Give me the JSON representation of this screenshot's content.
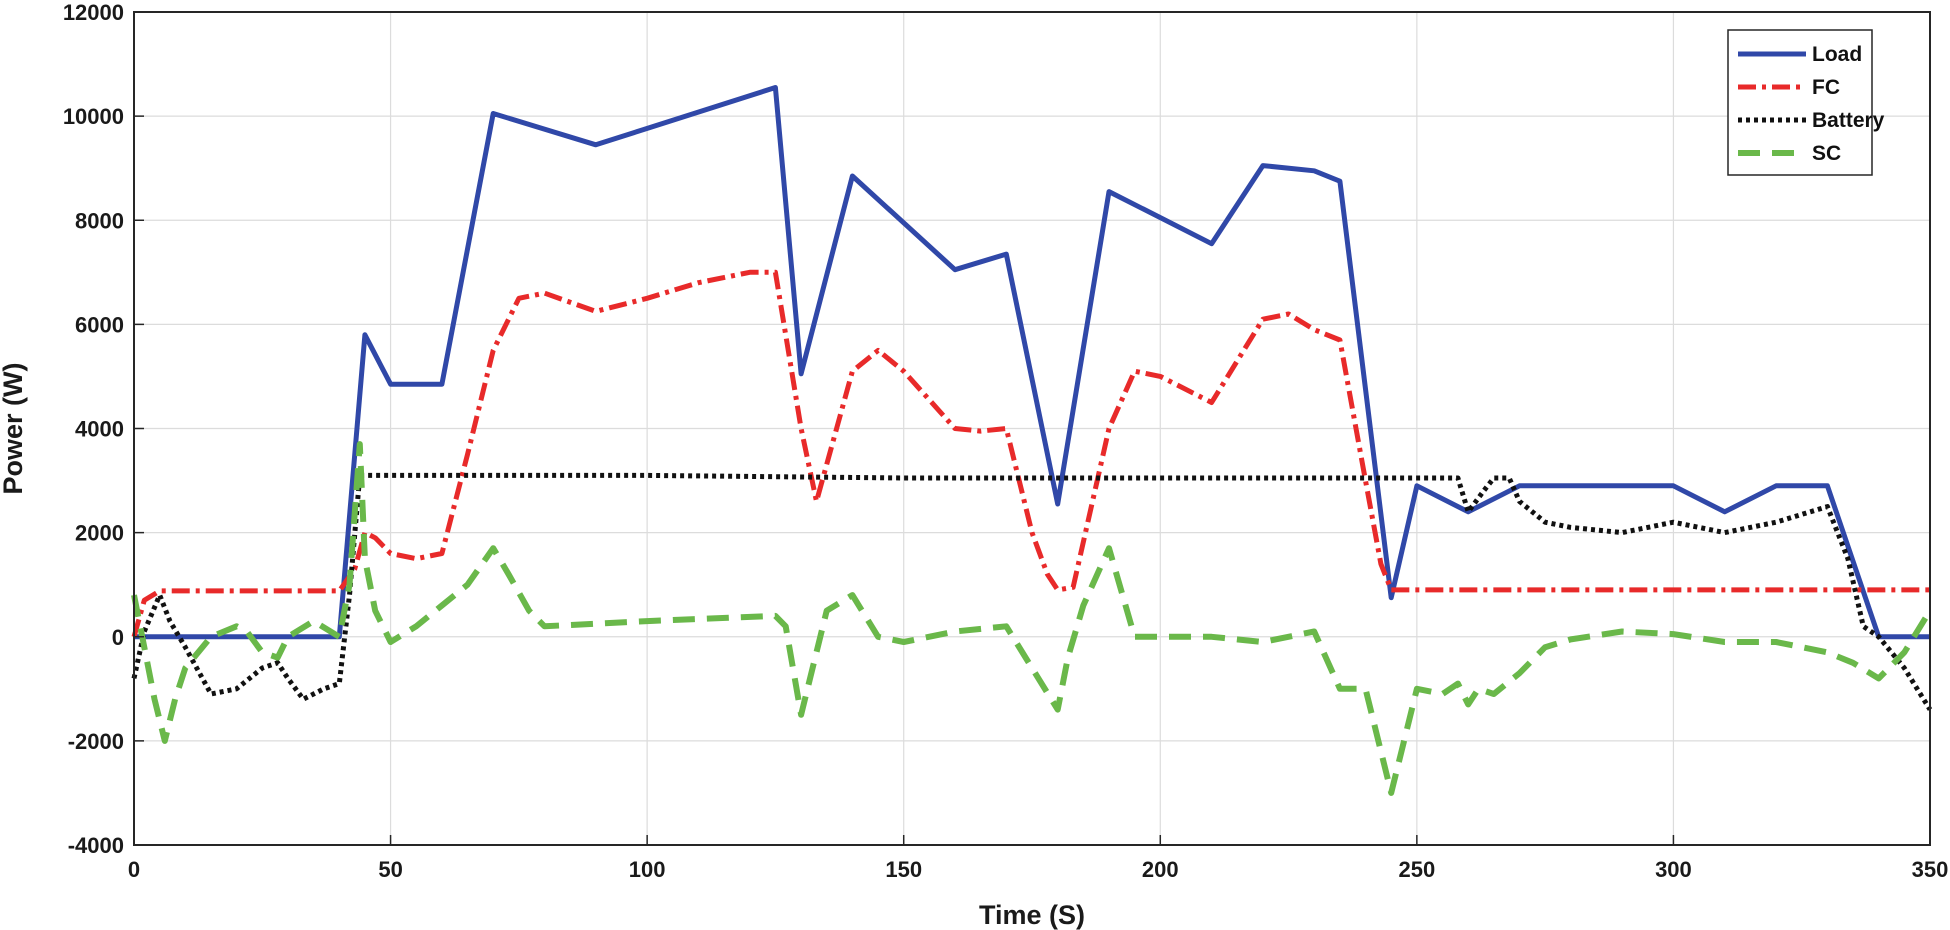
{
  "chart_data": {
    "type": "line",
    "title": "",
    "xlabel": "Time (S)",
    "ylabel": "Power (W)",
    "xlim": [
      0,
      350
    ],
    "ylim": [
      -4000,
      12000
    ],
    "grid": true,
    "legend_position": "top-right",
    "xticks": [
      0,
      50,
      100,
      150,
      200,
      250,
      300,
      350
    ],
    "yticks": [
      -4000,
      -2000,
      0,
      2000,
      4000,
      6000,
      8000,
      10000,
      12000
    ],
    "series": [
      {
        "name": "Load",
        "color": "#3048a8",
        "style": "solid",
        "x": [
          0,
          40,
          45,
          50,
          60,
          70,
          90,
          125,
          130,
          140,
          160,
          170,
          180,
          190,
          210,
          220,
          230,
          235,
          245,
          250,
          260,
          270,
          300,
          310,
          320,
          330,
          340,
          350
        ],
        "y": [
          0,
          0,
          5800,
          4850,
          4850,
          10050,
          9450,
          10550,
          5050,
          8850,
          7050,
          7350,
          2550,
          8550,
          7550,
          9050,
          8950,
          8750,
          750,
          2900,
          2400,
          2900,
          2900,
          2400,
          2900,
          2900,
          0,
          0
        ]
      },
      {
        "name": "FC",
        "color": "#e82a2a",
        "style": "dashdot",
        "x": [
          0,
          2,
          5,
          40,
          43,
          45,
          47,
          50,
          55,
          60,
          65,
          70,
          75,
          80,
          90,
          100,
          110,
          120,
          125,
          127,
          130,
          133,
          140,
          145,
          150,
          160,
          165,
          170,
          175,
          178,
          180,
          183,
          190,
          195,
          200,
          210,
          215,
          220,
          225,
          230,
          235,
          240,
          243,
          245,
          250,
          350
        ],
        "y": [
          0,
          700,
          880,
          880,
          1300,
          2000,
          1900,
          1600,
          1500,
          1600,
          3500,
          5500,
          6500,
          6600,
          6250,
          6500,
          6800,
          7000,
          7000,
          5800,
          4000,
          2600,
          5100,
          5500,
          5100,
          4000,
          3950,
          4000,
          2000,
          1200,
          900,
          950,
          4000,
          5100,
          5000,
          4500,
          5300,
          6100,
          6200,
          5900,
          5700,
          3000,
          1400,
          900,
          900,
          900
        ]
      },
      {
        "name": "Battery",
        "color": "#111111",
        "style": "dotted",
        "x": [
          0,
          2,
          5,
          7,
          10,
          15,
          20,
          25,
          28,
          30,
          33,
          37,
          40,
          42,
          44,
          46,
          50,
          55,
          60,
          100,
          150,
          200,
          240,
          258,
          260,
          263,
          265,
          268,
          270,
          275,
          280,
          290,
          300,
          305,
          310,
          320,
          330,
          334,
          337,
          340,
          345,
          350
        ],
        "y": [
          -800,
          100,
          800,
          300,
          -200,
          -1100,
          -1000,
          -600,
          -500,
          -800,
          -1200,
          -1000,
          -900,
          800,
          3100,
          3100,
          3100,
          3100,
          3100,
          3100,
          3050,
          3050,
          3050,
          3050,
          2400,
          2800,
          3050,
          3050,
          2600,
          2200,
          2100,
          2000,
          2200,
          2100,
          2000,
          2200,
          2500,
          1500,
          200,
          0,
          -600,
          -1400
        ]
      },
      {
        "name": "SC",
        "color": "#6ab84a",
        "style": "dashed",
        "x": [
          0,
          2,
          4,
          6,
          8,
          10,
          15,
          20,
          22,
          25,
          28,
          30,
          35,
          40,
          42,
          44,
          45,
          47,
          50,
          55,
          60,
          65,
          70,
          73,
          77,
          80,
          100,
          125,
          127,
          130,
          135,
          140,
          145,
          150,
          160,
          170,
          175,
          180,
          182,
          185,
          190,
          195,
          200,
          210,
          220,
          230,
          235,
          240,
          245,
          247,
          250,
          255,
          258,
          260,
          262,
          265,
          270,
          275,
          280,
          290,
          300,
          310,
          320,
          330,
          335,
          340,
          345,
          350
        ],
        "y": [
          800,
          -200,
          -1200,
          -2000,
          -1200,
          -600,
          0,
          200,
          100,
          -300,
          -400,
          0,
          300,
          0,
          1000,
          3700,
          1500,
          500,
          -100,
          200,
          600,
          1000,
          1700,
          1200,
          500,
          200,
          300,
          400,
          200,
          -1500,
          500,
          800,
          0,
          -100,
          100,
          200,
          -600,
          -1400,
          -400,
          600,
          1700,
          0,
          0,
          0,
          -100,
          100,
          -1000,
          -1000,
          -3000,
          -2200,
          -1000,
          -1100,
          -900,
          -1300,
          -1000,
          -1100,
          -700,
          -200,
          -50,
          100,
          50,
          -100,
          -100,
          -300,
          -500,
          -800,
          -300,
          500
        ]
      }
    ]
  }
}
